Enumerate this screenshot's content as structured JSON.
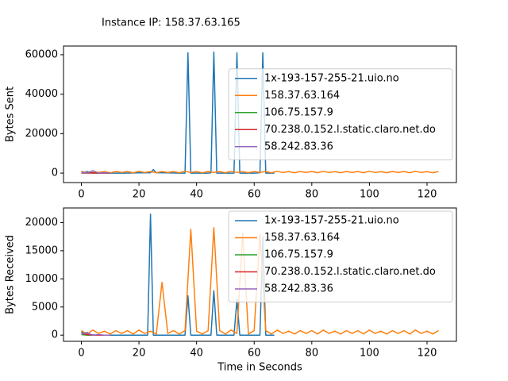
{
  "title": "Instance IP: 158.37.63.165",
  "chart_data": [
    {
      "type": "line",
      "ylabel": "Bytes Sent",
      "legend": "center right",
      "xlim": [
        -6.2,
        130.2
      ],
      "xticks": [
        0,
        20,
        40,
        60,
        80,
        100,
        120
      ],
      "ylim": [
        -4800,
        64400
      ],
      "yticks": [
        0,
        20000,
        40000,
        60000
      ],
      "series": [
        {
          "name": "1x-193-157-255-21.uio.no",
          "color": "#1f77b4",
          "x": [
            0,
            1,
            2,
            3,
            5,
            8,
            10,
            15,
            20,
            24,
            25,
            26,
            30,
            34,
            36,
            37,
            38,
            40,
            44,
            45,
            46,
            47,
            50,
            53,
            54,
            55,
            56,
            60,
            62,
            63,
            64,
            65,
            67
          ],
          "values": [
            900,
            300,
            800,
            200,
            100,
            100,
            0,
            0,
            100,
            200,
            1800,
            200,
            100,
            0,
            0,
            61000,
            0,
            0,
            0,
            200,
            61400,
            0,
            0,
            0,
            61000,
            0,
            0,
            0,
            200,
            61000,
            0,
            0,
            0
          ]
        },
        {
          "name": "158.37.63.164",
          "color": "#ff7f0e",
          "x": [
            0,
            2,
            4,
            6,
            8,
            10,
            12,
            14,
            16,
            18,
            20,
            22,
            24,
            26,
            28,
            30,
            32,
            34,
            36,
            38,
            40,
            42,
            44,
            46,
            48,
            50,
            52,
            54,
            56,
            58,
            60,
            62,
            64,
            66,
            68,
            70,
            72,
            74,
            76,
            78,
            80,
            82,
            84,
            86,
            88,
            90,
            92,
            94,
            96,
            98,
            100,
            102,
            104,
            106,
            108,
            110,
            112,
            114,
            116,
            118,
            120,
            122,
            124
          ],
          "values": [
            800,
            200,
            900,
            300,
            700,
            200,
            800,
            300,
            800,
            200,
            900,
            300,
            700,
            200,
            800,
            300,
            800,
            200,
            900,
            300,
            700,
            200,
            800,
            300,
            800,
            200,
            900,
            300,
            700,
            200,
            800,
            300,
            800,
            200,
            900,
            300,
            700,
            200,
            800,
            300,
            800,
            200,
            900,
            300,
            700,
            200,
            800,
            300,
            800,
            200,
            900,
            300,
            700,
            200,
            800,
            300,
            800,
            200,
            900,
            300,
            700,
            200,
            800
          ]
        },
        {
          "name": "106.75.157.9",
          "color": "#2ca02c",
          "x": [
            0,
            2,
            4,
            6,
            8,
            10
          ],
          "values": [
            0,
            100,
            0,
            0,
            0,
            0
          ]
        },
        {
          "name": "70.238.0.152.l.static.claro.net.do",
          "color": "#d62728",
          "x": [
            0,
            2,
            4,
            6,
            8,
            10
          ],
          "values": [
            200,
            0,
            100,
            0,
            0,
            0
          ]
        },
        {
          "name": "58.242.83.36",
          "color": "#9467bd",
          "x": [
            0,
            2,
            4,
            6,
            8,
            10
          ],
          "values": [
            400,
            100,
            1200,
            0,
            100,
            0
          ]
        }
      ]
    },
    {
      "type": "line",
      "ylabel": "Bytes Received",
      "xlabel": "Time in Seconds",
      "legend": "upper right",
      "xlim": [
        -6.2,
        130.2
      ],
      "xticks": [
        0,
        20,
        40,
        60,
        80,
        100,
        120
      ],
      "ylim": [
        -1100,
        22600
      ],
      "yticks": [
        0,
        5000,
        10000,
        15000,
        20000
      ],
      "series": [
        {
          "name": "1x-193-157-255-21.uio.no",
          "color": "#1f77b4",
          "x": [
            0,
            1,
            2,
            3,
            5,
            10,
            15,
            20,
            23,
            24,
            25,
            30,
            36,
            37,
            38,
            44,
            45,
            46,
            47,
            53,
            54,
            55,
            62,
            63,
            64,
            67
          ],
          "values": [
            600,
            200,
            500,
            100,
            0,
            0,
            0,
            0,
            0,
            21500,
            0,
            0,
            0,
            7000,
            0,
            0,
            0,
            7900,
            0,
            0,
            6300,
            0,
            0,
            17500,
            0,
            0
          ]
        },
        {
          "name": "158.37.63.164",
          "color": "#ff7f0e",
          "x": [
            0,
            2,
            4,
            6,
            8,
            10,
            12,
            14,
            16,
            18,
            20,
            22,
            24,
            26,
            28,
            30,
            32,
            34,
            36,
            38,
            40,
            42,
            44,
            46,
            48,
            50,
            52,
            54,
            56,
            58,
            60,
            62,
            64,
            66,
            68,
            70,
            72,
            74,
            76,
            78,
            80,
            82,
            84,
            86,
            88,
            90,
            92,
            94,
            96,
            98,
            100,
            102,
            104,
            106,
            108,
            110,
            112,
            114,
            116,
            118,
            120,
            122,
            124
          ],
          "values": [
            800,
            200,
            900,
            300,
            700,
            200,
            800,
            300,
            800,
            200,
            900,
            300,
            700,
            200,
            9400,
            300,
            800,
            200,
            800,
            18800,
            700,
            200,
            800,
            19100,
            800,
            200,
            900,
            300,
            18100,
            200,
            800,
            18000,
            800,
            200,
            900,
            300,
            700,
            200,
            800,
            300,
            800,
            200,
            900,
            300,
            700,
            200,
            800,
            300,
            800,
            200,
            900,
            300,
            700,
            200,
            800,
            300,
            800,
            200,
            900,
            300,
            700,
            200,
            800
          ]
        },
        {
          "name": "106.75.157.9",
          "color": "#2ca02c",
          "x": [
            0,
            2,
            4,
            6,
            8,
            10
          ],
          "values": [
            100,
            0,
            0,
            0,
            0,
            0
          ]
        },
        {
          "name": "70.238.0.152.l.static.claro.net.do",
          "color": "#d62728",
          "x": [
            0,
            2,
            4,
            6,
            8,
            10
          ],
          "values": [
            300,
            100,
            0,
            0,
            0,
            0
          ]
        },
        {
          "name": "58.242.83.36",
          "color": "#9467bd",
          "x": [
            0,
            2,
            4,
            6,
            8,
            10
          ],
          "values": [
            200,
            400,
            0,
            100,
            0,
            0
          ]
        }
      ]
    }
  ]
}
